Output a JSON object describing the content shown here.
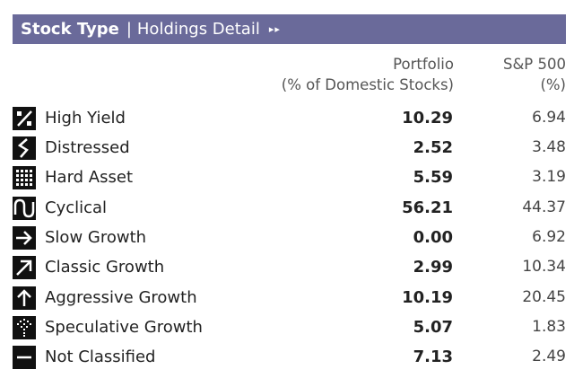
{
  "header": {
    "title_bold": "Stock Type",
    "separator": "|",
    "title_rest": "Holdings Detail",
    "arrows": "▸▸",
    "background": "#6a6a9a"
  },
  "columns": {
    "portfolio_line1": "Portfolio",
    "portfolio_line2": "(% of Domestic Stocks)",
    "sp500_line1": "S&P 500",
    "sp500_line2": "(%)"
  },
  "rows": [
    {
      "label": "High Yield",
      "icon": "high-yield-icon",
      "portfolio": "10.29",
      "sp500": "6.94"
    },
    {
      "label": "Distressed",
      "icon": "distressed-icon",
      "portfolio": "2.52",
      "sp500": "3.48"
    },
    {
      "label": "Hard Asset",
      "icon": "hard-asset-icon",
      "portfolio": "5.59",
      "sp500": "3.19"
    },
    {
      "label": "Cyclical",
      "icon": "cyclical-icon",
      "portfolio": "56.21",
      "sp500": "44.37"
    },
    {
      "label": "Slow Growth",
      "icon": "slow-growth-icon",
      "portfolio": "0.00",
      "sp500": "6.92"
    },
    {
      "label": "Classic Growth",
      "icon": "classic-growth-icon",
      "portfolio": "2.99",
      "sp500": "10.34"
    },
    {
      "label": "Aggressive Growth",
      "icon": "aggressive-growth-icon",
      "portfolio": "10.19",
      "sp500": "20.45"
    },
    {
      "label": "Speculative Growth",
      "icon": "speculative-growth-icon",
      "portfolio": "5.07",
      "sp500": "1.83"
    },
    {
      "label": "Not Classified",
      "icon": "not-classified-icon",
      "portfolio": "7.13",
      "sp500": "2.49"
    }
  ]
}
